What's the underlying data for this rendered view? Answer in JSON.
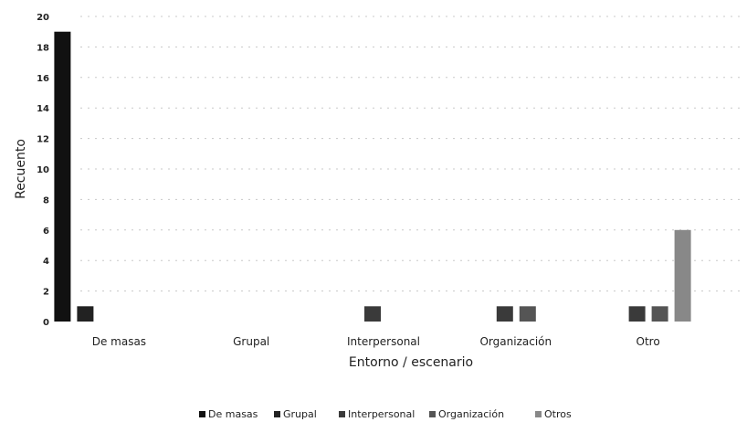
{
  "chart_data": {
    "type": "bar",
    "title": "",
    "xlabel": "Entorno / escenario",
    "ylabel": "Recuento",
    "ylim": [
      0,
      20
    ],
    "yticks": [
      0,
      2,
      4,
      6,
      8,
      10,
      12,
      14,
      16,
      18,
      20
    ],
    "grid": true,
    "legend_position": "bottom",
    "categories": [
      "De masas",
      "Grupal",
      "Interpersonal",
      "Organización",
      "Otro"
    ],
    "series": [
      {
        "name": "De masas",
        "color": "#111111",
        "values": [
          19,
          0,
          0,
          0,
          0
        ]
      },
      {
        "name": "Grupal",
        "color": "#222222",
        "values": [
          1,
          0,
          0,
          0,
          0
        ]
      },
      {
        "name": "Interpersonal",
        "color": "#3a3a3a",
        "values": [
          0,
          0,
          1,
          1,
          1
        ]
      },
      {
        "name": "Organización",
        "color": "#555555",
        "values": [
          0,
          0,
          0,
          1,
          1
        ]
      },
      {
        "name": "Otros",
        "color": "#888888",
        "values": [
          0,
          0,
          0,
          0,
          6
        ]
      }
    ]
  }
}
